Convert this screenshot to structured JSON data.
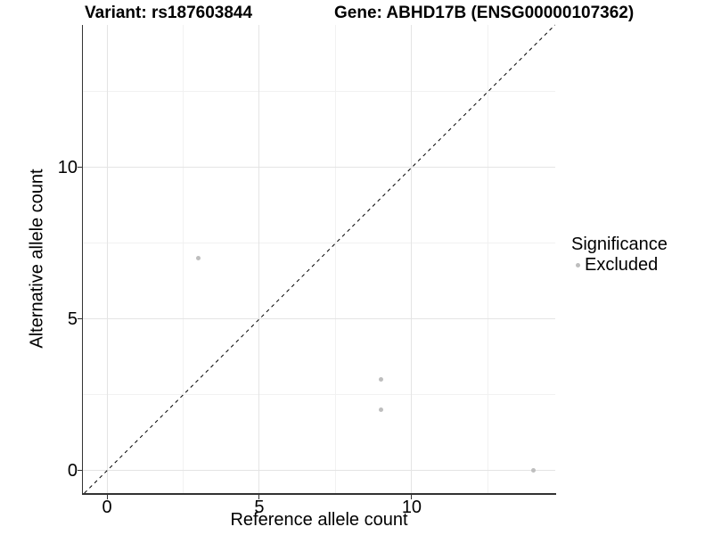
{
  "title": {
    "variant": "Variant: rs187603844",
    "gene": "Gene: ABHD17B (ENSG00000107362)"
  },
  "axes": {
    "x_label": "Reference allele count",
    "y_label": "Alternative allele count"
  },
  "legend": {
    "title": "Significance",
    "items": [
      {
        "label": "Excluded",
        "color": "#bebebe"
      }
    ]
  },
  "chart_data": {
    "type": "scatter",
    "title": "Variant: rs187603844   Gene: ABHD17B (ENSG00000107362)",
    "xlabel": "Reference allele count",
    "ylabel": "Alternative allele count",
    "series": [
      {
        "name": "Excluded",
        "color": "#bebebe",
        "points": [
          [
            3,
            7
          ],
          [
            9,
            3
          ],
          [
            9,
            2
          ],
          [
            14,
            0
          ]
        ]
      }
    ],
    "reference_line": {
      "type": "identity y=x",
      "style": "dashed",
      "color": "#000000"
    },
    "x_ticks": [
      0,
      5,
      10
    ],
    "y_ticks": [
      0,
      5,
      10
    ],
    "x_minor_ticks": [
      2.5,
      7.5,
      12.5
    ],
    "y_minor_ticks": [
      2.5,
      7.5,
      12.5
    ],
    "xlim": [
      -0.79,
      14.71
    ],
    "ylim": [
      -0.74,
      14.7
    ],
    "grid": "major+minor",
    "legend_position": "right",
    "colors": {
      "point": "#bebebe",
      "major_grid": "#e4e4e4",
      "minor_grid": "#f1f1f1",
      "axis_line": "#333333",
      "text": "#000000"
    }
  }
}
